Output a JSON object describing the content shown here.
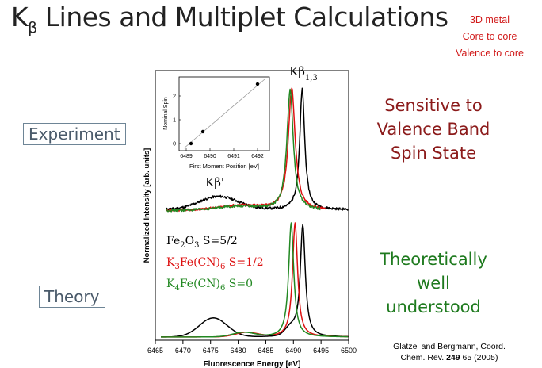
{
  "slide": {
    "title_main": "K",
    "title_sub": "β",
    "title_rest": " Lines and Multiplet Calculations",
    "notes": [
      "3D metal",
      "Core to core",
      "Valence to core"
    ],
    "experiment_label": "Experiment",
    "theory_label": "Theory",
    "sensitive_lines": [
      "Sensitive to",
      "Valence Band",
      "Spin State"
    ],
    "theoretical_lines": [
      "Theoretically",
      "well",
      "understood"
    ],
    "citation_line1": "Glatzel and Bergmann, Coord.",
    "citation_prefix": "Chem. Rev. ",
    "citation_volume": "249",
    "citation_suffix": " 65 (2005)",
    "colors": {
      "title": "#222222",
      "notes": "#d11a1a",
      "sensitive": "#8b1a1a",
      "theoretical": "#1e7a1e"
    }
  },
  "chart_data": {
    "type": "line",
    "xlabel": "Fluorescence Energy [eV]",
    "ylabel": "Normalized Intensity [arb. units]",
    "xlim": [
      6465,
      6500
    ],
    "xticks": [
      "6465",
      "6470",
      "6475",
      "6480",
      "6485",
      "6490",
      "6495",
      "6500"
    ],
    "peak_labels": {
      "kb13_main": "Kβ",
      "kb13_sub": "1,3",
      "kbprime": "Kβ'"
    },
    "legend": [
      {
        "main": "Fe",
        "sub": "2",
        "rest": "O",
        "sub2": "3",
        "tail": " S=5/2",
        "color": "#000000"
      },
      {
        "main": "K",
        "sub": "3",
        "rest": "Fe(CN)",
        "sub2": "6",
        "tail": " S=1/2",
        "color": "#dd1111"
      },
      {
        "main": "K",
        "sub": "4",
        "rest": "Fe(CN)",
        "sub2": "6",
        "tail": " S=0",
        "color": "#228822"
      }
    ],
    "experiment": [
      {
        "name": "Fe2O3 S=5/2",
        "color": "#000000",
        "x0": 6467,
        "x1": 6500,
        "bg": 0.01,
        "peaks": [
          {
            "c": 6491.6,
            "a": 0.92,
            "w": 0.55,
            "t": "L"
          },
          {
            "c": 6476.5,
            "a": 0.1,
            "w": 3.5,
            "t": "G"
          }
        ]
      },
      {
        "name": "K3Fe(CN)6 S=1/2",
        "color": "#dd1111",
        "x0": 6467,
        "x1": 6496,
        "bg": 0.005,
        "peaks": [
          {
            "c": 6489.7,
            "a": 0.93,
            "w": 0.75,
            "t": "L"
          },
          {
            "c": 6480.5,
            "a": 0.035,
            "w": 4.0,
            "t": "G"
          }
        ]
      },
      {
        "name": "K4Fe(CN)6 S=0",
        "color": "#228822",
        "x0": 6467,
        "x1": 6495,
        "bg": 0.003,
        "peaks": [
          {
            "c": 6489.4,
            "a": 0.92,
            "w": 0.7,
            "t": "L"
          },
          {
            "c": 6480.0,
            "a": 0.03,
            "w": 4.0,
            "t": "G"
          }
        ]
      }
    ],
    "theory": [
      {
        "name": "Fe2O3 S=5/2",
        "color": "#000000",
        "x0": 6466,
        "x1": 6500,
        "bg": 0.0,
        "peaks": [
          {
            "c": 6491.7,
            "a": 0.88,
            "w": 0.55,
            "t": "L"
          },
          {
            "c": 6475.5,
            "a": 0.15,
            "w": 2.5,
            "t": "G"
          },
          {
            "c": 6489.5,
            "a": 0.06,
            "w": 1.0,
            "t": "G"
          }
        ]
      },
      {
        "name": "K3Fe(CN)6 S=1/2",
        "color": "#dd1111",
        "x0": 6466,
        "x1": 6500,
        "bg": 0.0,
        "peaks": [
          {
            "c": 6490.3,
            "a": 0.9,
            "w": 0.55,
            "t": "L"
          },
          {
            "c": 6481.5,
            "a": 0.035,
            "w": 2.0,
            "t": "G"
          }
        ]
      },
      {
        "name": "K4Fe(CN)6 S=0",
        "color": "#228822",
        "x0": 6466,
        "x1": 6500,
        "bg": 0.0,
        "peaks": [
          {
            "c": 6489.6,
            "a": 0.9,
            "w": 0.55,
            "t": "L"
          },
          {
            "c": 6481.0,
            "a": 0.035,
            "w": 2.0,
            "t": "G"
          }
        ]
      }
    ],
    "inset": {
      "xlabel": "First Moment Position [eV]",
      "ylabel": "Nominal Spin",
      "xlim": [
        6488.7,
        6492.5
      ],
      "ylim": [
        -0.3,
        2.8
      ],
      "xticks": [
        "6489",
        "6490",
        "6491",
        "6492"
      ],
      "yticks": [
        "0",
        "1",
        "2"
      ],
      "points": [
        {
          "x": 6489.2,
          "y": 0
        },
        {
          "x": 6489.7,
          "y": 0.5
        },
        {
          "x": 6492.0,
          "y": 2.5
        }
      ],
      "fit": {
        "x0": 6488.9,
        "y0": -0.2,
        "x1": 6492.3,
        "y1": 2.7
      }
    }
  }
}
